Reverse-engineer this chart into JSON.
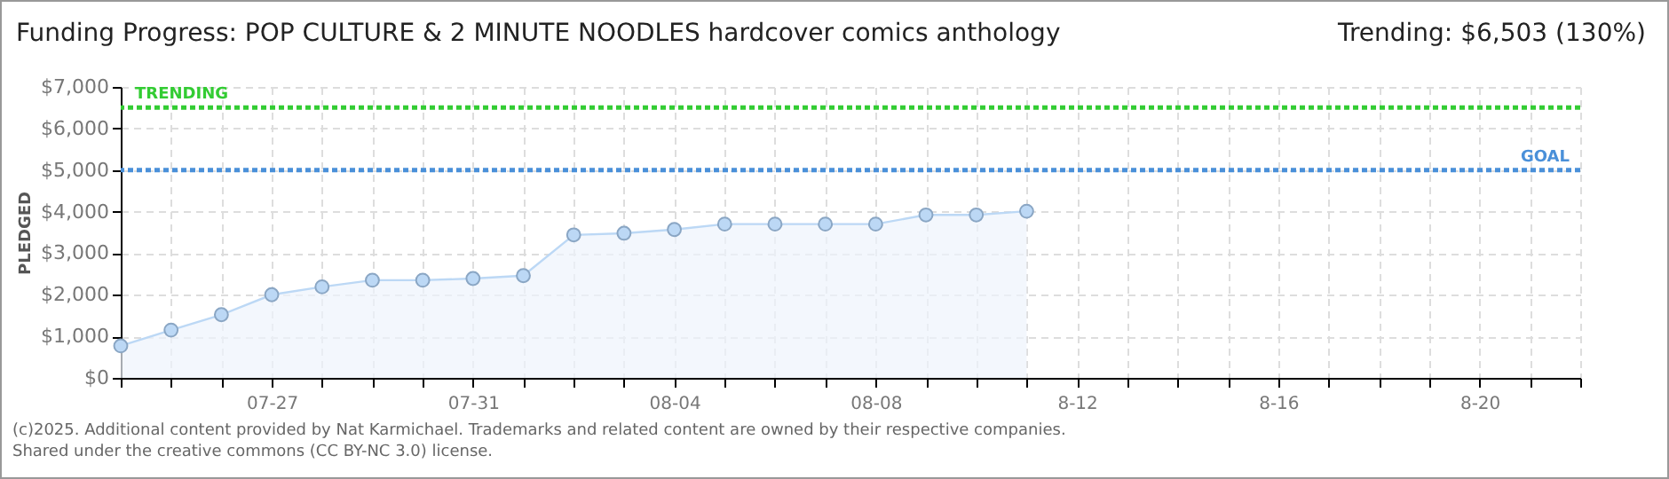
{
  "chart_data": {
    "type": "area",
    "title": "Funding Progress: POP CULTURE & 2 MINUTE NOODLES hardcover comics anthology",
    "ylabel": "PLEDGED",
    "annotations": [
      "Trending: $6,503 (130%)",
      "(c)2025. Additional content provided by Nat Karmichael. Trademarks and related content are owned by their respective companies.",
      "Shared under the creative commons (CC BY-NC 3.0) license."
    ],
    "x": [
      "2025-07-24",
      "2025-07-25",
      "2025-07-26",
      "2025-07-27",
      "2025-07-28",
      "2025-07-29",
      "2025-07-30",
      "2025-07-31",
      "2025-08-01",
      "2025-08-02",
      "2025-08-03",
      "2025-08-04",
      "2025-08-05",
      "2025-08-06",
      "2025-08-07",
      "2025-08-08",
      "2025-08-09",
      "2025-08-10",
      "2025-08-11"
    ],
    "series": [
      {
        "color": "#bcd8f5",
        "values": [
          770,
          1150,
          1520,
          2000,
          2190,
          2350,
          2350,
          2390,
          2460,
          3440,
          3480,
          3570,
          3700,
          3700,
          3700,
          3700,
          3920,
          3920,
          4010
        ]
      }
    ],
    "marker": "circle",
    "xlim": [
      "2025-07-24",
      "2025-08-22"
    ],
    "xticks": [
      {
        "value": "2025-07-24",
        "label": null
      },
      {
        "value": "2025-07-25",
        "label": null
      },
      {
        "value": "2025-07-26",
        "label": null
      },
      {
        "value": "2025-07-27",
        "label": "07-27"
      },
      {
        "value": "2025-07-28",
        "label": null
      },
      {
        "value": "2025-07-29",
        "label": null
      },
      {
        "value": "2025-07-30",
        "label": null
      },
      {
        "value": "2025-07-31",
        "label": "07-31"
      },
      {
        "value": "2025-08-01",
        "label": null
      },
      {
        "value": "2025-08-02",
        "label": null
      },
      {
        "value": "2025-08-03",
        "label": null
      },
      {
        "value": "2025-08-04",
        "label": "08-04"
      },
      {
        "value": "2025-08-05",
        "label": null
      },
      {
        "value": "2025-08-06",
        "label": null
      },
      {
        "value": "2025-08-07",
        "label": null
      },
      {
        "value": "2025-08-08",
        "label": "08-08"
      },
      {
        "value": "2025-08-09",
        "label": null
      },
      {
        "value": "2025-08-10",
        "label": null
      },
      {
        "value": "2025-08-11",
        "label": null
      },
      {
        "value": "2025-08-12",
        "label": "8-12"
      },
      {
        "value": "2025-08-13",
        "label": null
      },
      {
        "value": "2025-08-14",
        "label": null
      },
      {
        "value": "2025-08-15",
        "label": null
      },
      {
        "value": "2025-08-16",
        "label": "8-16"
      },
      {
        "value": "2025-08-17",
        "label": null
      },
      {
        "value": "2025-08-18",
        "label": null
      },
      {
        "value": "2025-08-19",
        "label": null
      },
      {
        "value": "2025-08-20",
        "label": "8-20"
      },
      {
        "value": "2025-08-21",
        "label": null
      },
      {
        "value": "2025-08-22",
        "label": null
      }
    ],
    "ylim": [
      0,
      7000
    ],
    "yticks": [
      {
        "value": 0,
        "label": "$0"
      },
      {
        "value": 1000,
        "label": "$1,000"
      },
      {
        "value": 2000,
        "label": "$2,000"
      },
      {
        "value": 3000,
        "label": "$3,000"
      },
      {
        "value": 4000,
        "label": "$4,000"
      },
      {
        "value": 5000,
        "label": "$5,000"
      },
      {
        "value": 6000,
        "label": "$6,000"
      },
      {
        "value": 7000,
        "label": "$7,000"
      }
    ],
    "ref_lines": [
      {
        "axis": "y",
        "value": 6503,
        "label": "TRENDING",
        "color": "#33cc33",
        "line_style": "dotted"
      },
      {
        "axis": "y",
        "value": 5000,
        "label": "GOAL",
        "color": "#4a90d9",
        "line_style": "dotted"
      }
    ],
    "grid": true
  }
}
